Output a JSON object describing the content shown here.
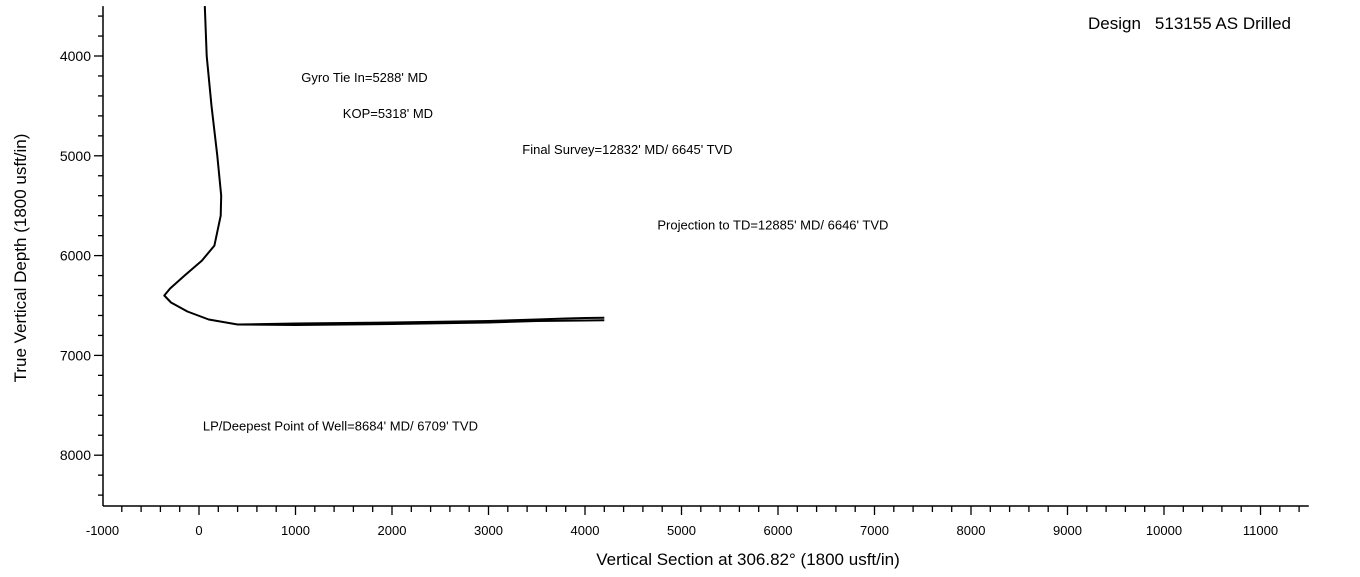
{
  "header": {
    "design_label": "Design",
    "design_value": "513155 AS Drilled"
  },
  "chart_data": {
    "type": "line",
    "title": "",
    "xlabel": "Vertical Section at 306.82° (1800 usft/in)",
    "ylabel": "True Vertical Depth (1800 usft/in)",
    "xlim": [
      -1000,
      11500
    ],
    "ylim": [
      3500,
      8500
    ],
    "y_inverted": true,
    "grid": false,
    "x_ticks": [
      -1000,
      0,
      1000,
      2000,
      3000,
      4000,
      5000,
      6000,
      7000,
      8000,
      9000,
      10000,
      11000
    ],
    "x_tick_labels": [
      "-1000",
      "0",
      "1000",
      "2000",
      "3000",
      "4000",
      "5000",
      "6000",
      "7000",
      "8000",
      "9000",
      "10000",
      "11000"
    ],
    "y_ticks": [
      4000,
      5000,
      6000,
      7000,
      8000
    ],
    "y_tick_labels": [
      "4000",
      "5000",
      "6000",
      "7000",
      "8000"
    ],
    "series": [
      {
        "color": "#000000",
        "x": [
          60,
          80,
          130,
          190,
          230,
          225,
          160,
          30,
          -150,
          -300,
          -360,
          -290,
          -120,
          100,
          400,
          1000,
          2000,
          3000,
          3500,
          4000,
          4200
        ],
        "y": [
          3500,
          4000,
          4500,
          5000,
          5400,
          5600,
          5900,
          6050,
          6200,
          6330,
          6400,
          6470,
          6560,
          6640,
          6690,
          6695,
          6685,
          6670,
          6655,
          6650,
          6648
        ]
      },
      {
        "color": "#000000",
        "x": [
          400,
          1000,
          2000,
          3000,
          3500,
          3800,
          4000,
          4200
        ],
        "y": [
          6690,
          6680,
          6670,
          6655,
          6640,
          6630,
          6625,
          6622
        ]
      }
    ],
    "annotations": [
      {
        "text": "Gyro Tie In=5288' MD",
        "x": 1060,
        "y": 4260
      },
      {
        "text": "KOP=5318' MD",
        "x": 1490,
        "y": 4620
      },
      {
        "text": "Final Survey=12832' MD/ 6645' TVD",
        "x": 3350,
        "y": 4980
      },
      {
        "text": "Projection to TD=12885' MD/ 6646' TVD",
        "x": 4750,
        "y": 5740
      },
      {
        "text": "LP/Deepest Point of Well=8684' MD/ 6709' TVD",
        "x": 40,
        "y": 7750
      }
    ]
  }
}
